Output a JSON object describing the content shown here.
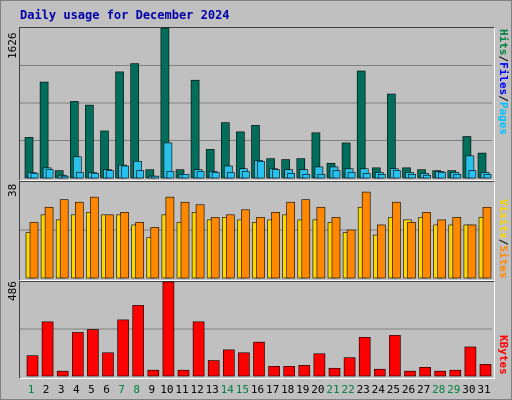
{
  "title": "Daily usage for December 2024",
  "colors": {
    "hits": "#006e5a",
    "files": "#2ac0e8",
    "pages": "#25c2f2",
    "visits": "#ffd700",
    "sites": "#ff8800",
    "kbytes": "#ff0000",
    "weekend": "#008040",
    "weekday": "#000000",
    "label_blue": "#0000ff"
  },
  "side_labels": {
    "top": {
      "pages": "Pages",
      "files": "Files",
      "hits": "Hits",
      "sep": "/"
    },
    "middle": {
      "sites": "Sites",
      "visits": "Visits",
      "sep": "/"
    },
    "bottom": {
      "kbytes": "KBytes"
    }
  },
  "chart_data": [
    {
      "type": "bar",
      "ylabel_max": "1626",
      "ylim": [
        0,
        1626
      ],
      "categories": [
        "1",
        "2",
        "3",
        "4",
        "5",
        "6",
        "7",
        "8",
        "9",
        "10",
        "11",
        "12",
        "13",
        "14",
        "15",
        "16",
        "17",
        "18",
        "19",
        "20",
        "21",
        "22",
        "23",
        "24",
        "25",
        "26",
        "27",
        "28",
        "29",
        "30",
        "31"
      ],
      "series": [
        {
          "name": "Hits",
          "values": [
            440,
            1040,
            80,
            830,
            790,
            510,
            1150,
            1240,
            90,
            1626,
            90,
            1060,
            310,
            600,
            500,
            570,
            210,
            200,
            210,
            490,
            160,
            380,
            1160,
            110,
            910,
            110,
            90,
            80,
            80,
            450,
            270
          ]
        },
        {
          "name": "Files",
          "values": [
            60,
            110,
            30,
            230,
            60,
            90,
            140,
            180,
            20,
            380,
            40,
            90,
            70,
            130,
            100,
            190,
            100,
            90,
            90,
            120,
            120,
            100,
            100,
            60,
            100,
            60,
            50,
            70,
            60,
            240,
            60
          ]
        },
        {
          "name": "Pages",
          "values": [
            50,
            90,
            20,
            60,
            50,
            80,
            130,
            80,
            20,
            70,
            40,
            70,
            60,
            60,
            70,
            180,
            90,
            50,
            40,
            40,
            80,
            60,
            50,
            40,
            80,
            40,
            30,
            60,
            40,
            80,
            40
          ]
        }
      ]
    },
    {
      "type": "bar",
      "ylabel_max": "38",
      "ylim": [
        0,
        38
      ],
      "categories": [
        "1",
        "2",
        "3",
        "4",
        "5",
        "6",
        "7",
        "8",
        "9",
        "10",
        "11",
        "12",
        "13",
        "14",
        "15",
        "16",
        "17",
        "18",
        "19",
        "20",
        "21",
        "22",
        "23",
        "24",
        "25",
        "26",
        "27",
        "28",
        "29",
        "30",
        "31"
      ],
      "series": [
        {
          "name": "Visits",
          "values": [
            18,
            25,
            23,
            25,
            26,
            25,
            25,
            21,
            16,
            25,
            22,
            26,
            23,
            24,
            23,
            22,
            23,
            25,
            23,
            23,
            22,
            18,
            28,
            17,
            24,
            23,
            24,
            21,
            21,
            21,
            24
          ]
        },
        {
          "name": "Sites",
          "values": [
            22,
            28,
            31,
            30,
            32,
            25,
            26,
            22,
            20,
            32,
            30,
            29,
            24,
            25,
            27,
            24,
            26,
            30,
            31,
            28,
            24,
            19,
            34,
            21,
            30,
            22,
            26,
            23,
            24,
            21,
            28
          ]
        }
      ]
    },
    {
      "type": "bar",
      "ylabel_max": "486",
      "ylim": [
        0,
        486
      ],
      "categories": [
        "1",
        "2",
        "3",
        "4",
        "5",
        "6",
        "7",
        "8",
        "9",
        "10",
        "11",
        "12",
        "13",
        "14",
        "15",
        "16",
        "17",
        "18",
        "19",
        "20",
        "21",
        "22",
        "23",
        "24",
        "25",
        "26",
        "27",
        "28",
        "29",
        "30",
        "31"
      ],
      "series": [
        {
          "name": "KBytes",
          "values": [
            105,
            280,
            25,
            225,
            240,
            120,
            290,
            365,
            30,
            486,
            30,
            280,
            80,
            135,
            120,
            175,
            50,
            50,
            55,
            115,
            40,
            95,
            200,
            35,
            210,
            25,
            45,
            25,
            30,
            150,
            60
          ]
        }
      ]
    }
  ],
  "weekend_days": [
    "1",
    "7",
    "8",
    "14",
    "15",
    "21",
    "22",
    "28",
    "29"
  ]
}
